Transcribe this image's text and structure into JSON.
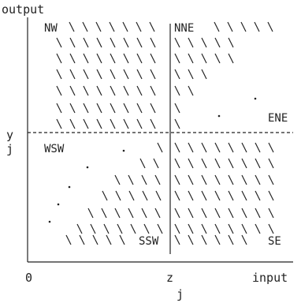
{
  "diagram": {
    "y_axis_label": "output",
    "x_axis_label": "input",
    "origin_label": "0",
    "z_label": "z",
    "x_j_label": "j",
    "y_label": "y",
    "y_j_label": "j",
    "regions": [
      "NW",
      "NNE",
      "ENE",
      "WSW",
      "SSW",
      "SE"
    ]
  }
}
